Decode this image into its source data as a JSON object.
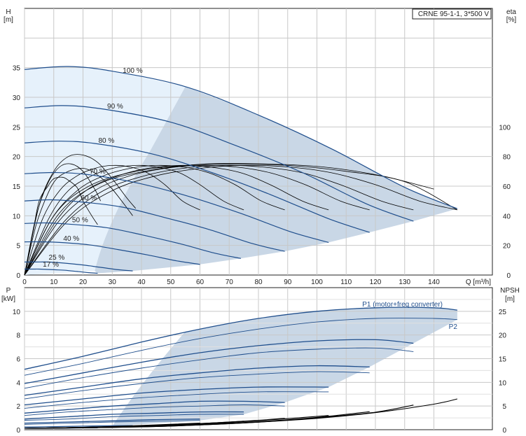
{
  "model_label": "CRNE 95-1-1, 3*500 V",
  "colors": {
    "grid": "#c8c8c8",
    "envelope_light": "#e6f1fb",
    "envelope_dark": "#c9d7e6",
    "pump_curve": "#1f4e8c",
    "eta_curve": "#000000",
    "axis": "#222222"
  },
  "chart_data": [
    {
      "type": "line",
      "panel": "top",
      "x_axis": {
        "label": "Q [m³/h]",
        "min": 0,
        "max": 160,
        "ticks": [
          0,
          10,
          20,
          30,
          40,
          50,
          60,
          70,
          80,
          90,
          100,
          110,
          120,
          130,
          140
        ]
      },
      "y_left": {
        "label_top": "H",
        "label_unit": "[m]",
        "min": 0,
        "max": 45,
        "ticks": [
          0,
          5,
          10,
          15,
          20,
          25,
          30,
          35
        ]
      },
      "y_right": {
        "label_top": "eta",
        "label_unit": "[%]",
        "min": 0,
        "max": 180,
        "ticks": [
          0,
          20,
          40,
          60,
          80,
          100
        ]
      },
      "grid": true,
      "speed_curves": [
        {
          "label": "100 %",
          "x": [
            0,
            15,
            30,
            55,
            80,
            105,
            130,
            148
          ],
          "y": [
            34.7,
            35.2,
            34.4,
            31.8,
            27.0,
            21.3,
            14.8,
            11.2
          ]
        },
        {
          "label": "90 %",
          "x": [
            0,
            13,
            27,
            50,
            72,
            95,
            117,
            133
          ],
          "y": [
            28.2,
            28.6,
            28.0,
            25.8,
            21.9,
            17.3,
            12.0,
            9.1
          ]
        },
        {
          "label": "80 %",
          "x": [
            0,
            12,
            24,
            44,
            64,
            84,
            104,
            118
          ],
          "y": [
            22.3,
            22.6,
            22.2,
            20.4,
            17.3,
            13.6,
            9.5,
            7.2
          ]
        },
        {
          "label": "70 %",
          "x": [
            0,
            10,
            21,
            38,
            56,
            74,
            91,
            104
          ],
          "y": [
            17.1,
            17.3,
            17.0,
            15.6,
            13.3,
            10.4,
            7.3,
            5.5
          ]
        },
        {
          "label": "60 %",
          "x": [
            0,
            9,
            18,
            33,
            48,
            63,
            78,
            89
          ],
          "y": [
            12.5,
            12.7,
            12.4,
            11.5,
            9.7,
            7.7,
            5.3,
            4.0
          ]
        },
        {
          "label": "50 %",
          "x": [
            0,
            7,
            15,
            28,
            40,
            53,
            65,
            74
          ],
          "y": [
            8.7,
            8.8,
            8.6,
            8.0,
            6.8,
            5.3,
            3.7,
            2.8
          ]
        },
        {
          "label": "40 %",
          "x": [
            0,
            6,
            12,
            22,
            32,
            42,
            52,
            60
          ],
          "y": [
            5.6,
            5.6,
            5.5,
            5.1,
            4.3,
            3.4,
            2.4,
            1.8
          ]
        },
        {
          "label": "25 %",
          "x": [
            0,
            4,
            8,
            14,
            20,
            26,
            32,
            37
          ],
          "y": [
            2.2,
            2.2,
            2.2,
            2.0,
            1.7,
            1.3,
            0.9,
            0.7
          ]
        },
        {
          "label": "17 %",
          "x": [
            0,
            3,
            5,
            10,
            14,
            18,
            22,
            25
          ],
          "y": [
            1.0,
            1.0,
            1.0,
            0.9,
            0.8,
            0.6,
            0.4,
            0.3
          ]
        }
      ],
      "eta_curves": [
        {
          "x": [
            0,
            15,
            30,
            45,
            60,
            75,
            90,
            105,
            120,
            135,
            148
          ],
          "y": [
            0,
            37,
            57,
            67,
            72,
            74,
            73,
            69,
            61,
            50,
            44
          ]
        },
        {
          "x": [
            0,
            14,
            27,
            41,
            54,
            68,
            81,
            95,
            108,
            122,
            133
          ],
          "y": [
            0,
            37,
            57,
            67,
            72,
            74,
            73,
            69,
            61,
            50,
            44
          ]
        },
        {
          "x": [
            0,
            12,
            24,
            36,
            48,
            60,
            72,
            84,
            96,
            108,
            118
          ],
          "y": [
            0,
            37,
            57,
            67,
            72,
            74,
            73,
            69,
            61,
            50,
            44
          ]
        },
        {
          "x": [
            0,
            11,
            21,
            32,
            42,
            53,
            63,
            74,
            84,
            95,
            104
          ],
          "y": [
            0,
            37,
            57,
            67,
            72,
            74,
            73,
            69,
            61,
            50,
            44
          ]
        },
        {
          "x": [
            0,
            9,
            18,
            27,
            36,
            45,
            54,
            63,
            72,
            81,
            89
          ],
          "y": [
            0,
            37,
            57,
            67,
            72,
            74,
            73,
            69,
            61,
            50,
            44
          ]
        },
        {
          "x": [
            0,
            8,
            15,
            23,
            30,
            38,
            45,
            53,
            60,
            68,
            75
          ],
          "y": [
            0,
            37,
            57,
            67,
            72,
            74,
            73,
            69,
            61,
            50,
            44
          ]
        },
        {
          "x": [
            0,
            6,
            12,
            18,
            24,
            30,
            36,
            42,
            48,
            54,
            60
          ],
          "y": [
            0,
            37,
            57,
            67,
            72,
            74,
            73,
            69,
            61,
            50,
            44
          ]
        },
        {
          "x": [
            0,
            4,
            8,
            11,
            15,
            19,
            22,
            26,
            30,
            34,
            37
          ],
          "y": [
            0,
            34,
            55,
            65,
            70,
            72,
            71,
            66,
            58,
            48,
            40
          ]
        },
        {
          "x": [
            0,
            3,
            5,
            8,
            10,
            13,
            15,
            18,
            20,
            23,
            25
          ],
          "y": [
            0,
            30,
            50,
            60,
            65,
            66,
            64,
            59,
            50,
            40,
            34
          ]
        },
        {
          "x": [
            0,
            5,
            10,
            15,
            20,
            25,
            30,
            35,
            38
          ],
          "y": [
            0,
            47,
            70,
            80,
            81,
            76,
            65,
            52,
            45
          ]
        },
        {
          "x": [
            0,
            4,
            8,
            12,
            16,
            20,
            24,
            26
          ],
          "y": [
            0,
            40,
            62,
            73,
            75,
            70,
            58,
            50
          ]
        },
        {
          "x": [
            0,
            10,
            22,
            38,
            55,
            72,
            90,
            110,
            130,
            148
          ],
          "y": [
            0,
            40,
            60,
            70,
            74,
            75,
            74,
            70,
            63,
            44
          ]
        },
        {
          "x": [
            0,
            12,
            26,
            44,
            62,
            82,
            102,
            122,
            140
          ],
          "y": [
            0,
            42,
            62,
            71,
            75,
            75,
            73,
            67,
            58
          ]
        }
      ]
    },
    {
      "type": "line",
      "panel": "bottom",
      "x_axis": {
        "label": "",
        "min": 0,
        "max": 160,
        "ticks": []
      },
      "y_left": {
        "label_top": "P",
        "label_unit": "[kW]",
        "min": 0,
        "max": 12,
        "ticks": [
          0,
          2,
          4,
          6,
          8,
          10
        ]
      },
      "y_right": {
        "label_top": "NPSH",
        "label_unit": "[m]",
        "min": 0,
        "max": 30,
        "ticks": [
          0,
          5,
          10,
          15,
          20,
          25
        ]
      },
      "grid": true,
      "power_labels": [
        {
          "text": "P1 (motor+freq converter)",
          "x": 143,
          "y": 10.4
        },
        {
          "text": "P2",
          "x": 148,
          "y": 8.5
        }
      ],
      "power_curves": [
        {
          "x": [
            0,
            20,
            40,
            60,
            80,
            100,
            120,
            140,
            148
          ],
          "y": [
            5.1,
            6.2,
            7.4,
            8.5,
            9.4,
            10.0,
            10.3,
            10.3,
            10.1
          ]
        },
        {
          "x": [
            0,
            20,
            40,
            60,
            80,
            100,
            120,
            140,
            148
          ],
          "y": [
            4.6,
            5.6,
            6.7,
            7.7,
            8.5,
            9.1,
            9.4,
            9.4,
            9.3
          ]
        },
        {
          "x": [
            0,
            20,
            40,
            60,
            80,
            100,
            120,
            133
          ],
          "y": [
            3.9,
            4.8,
            5.7,
            6.5,
            7.1,
            7.5,
            7.6,
            7.3
          ]
        },
        {
          "x": [
            0,
            20,
            40,
            60,
            80,
            100,
            120,
            133
          ],
          "y": [
            3.5,
            4.4,
            5.2,
            5.9,
            6.5,
            6.8,
            6.9,
            6.6
          ]
        },
        {
          "x": [
            0,
            20,
            40,
            60,
            80,
            100,
            118
          ],
          "y": [
            2.9,
            3.6,
            4.3,
            4.8,
            5.2,
            5.4,
            5.3
          ]
        },
        {
          "x": [
            0,
            20,
            40,
            60,
            80,
            100,
            118
          ],
          "y": [
            2.6,
            3.3,
            3.9,
            4.4,
            4.7,
            4.9,
            4.8
          ]
        },
        {
          "x": [
            0,
            20,
            40,
            60,
            80,
            104
          ],
          "y": [
            2.1,
            2.6,
            3.1,
            3.4,
            3.6,
            3.6
          ]
        },
        {
          "x": [
            0,
            20,
            40,
            60,
            80,
            104
          ],
          "y": [
            1.8,
            2.3,
            2.7,
            3.0,
            3.2,
            3.2
          ]
        },
        {
          "x": [
            0,
            15,
            30,
            45,
            60,
            75,
            89
          ],
          "y": [
            1.4,
            1.7,
            2.0,
            2.2,
            2.4,
            2.4,
            2.3
          ]
        },
        {
          "x": [
            0,
            15,
            30,
            45,
            60,
            75,
            89
          ],
          "y": [
            1.2,
            1.5,
            1.7,
            1.9,
            2.0,
            2.1,
            2.0
          ]
        },
        {
          "x": [
            0,
            15,
            30,
            45,
            60,
            75
          ],
          "y": [
            0.9,
            1.1,
            1.3,
            1.4,
            1.5,
            1.5
          ]
        },
        {
          "x": [
            0,
            15,
            30,
            45,
            60,
            75
          ],
          "y": [
            0.8,
            0.9,
            1.1,
            1.2,
            1.3,
            1.3
          ]
        },
        {
          "x": [
            0,
            15,
            30,
            45,
            60
          ],
          "y": [
            0.55,
            0.65,
            0.75,
            0.85,
            0.9
          ]
        },
        {
          "x": [
            0,
            15,
            30,
            45,
            60
          ],
          "y": [
            0.45,
            0.55,
            0.65,
            0.72,
            0.78
          ]
        },
        {
          "x": [
            0,
            10,
            20,
            30,
            37
          ],
          "y": [
            0.22,
            0.26,
            0.3,
            0.33,
            0.34
          ]
        },
        {
          "x": [
            0,
            10,
            20,
            25
          ],
          "y": [
            0.1,
            0.12,
            0.14,
            0.15
          ]
        }
      ],
      "npsh_curves": [
        {
          "x": [
            0,
            20,
            40,
            60,
            80,
            100,
            120,
            140,
            148
          ],
          "y": [
            0.3,
            0.4,
            0.6,
            1.0,
            1.6,
            2.4,
            3.6,
            5.4,
            6.5
          ]
        },
        {
          "x": [
            0,
            20,
            40,
            60,
            80,
            100,
            120,
            133
          ],
          "y": [
            0.3,
            0.4,
            0.6,
            1.0,
            1.6,
            2.5,
            3.7,
            5.2
          ]
        },
        {
          "x": [
            0,
            20,
            40,
            60,
            80,
            100,
            118
          ],
          "y": [
            0.3,
            0.4,
            0.7,
            1.1,
            1.7,
            2.6,
            3.8
          ]
        },
        {
          "x": [
            0,
            20,
            40,
            60,
            80,
            104
          ],
          "y": [
            0.3,
            0.5,
            0.7,
            1.2,
            1.9,
            3.0
          ]
        },
        {
          "x": [
            0,
            20,
            40,
            60,
            80,
            89
          ],
          "y": [
            0.3,
            0.5,
            0.8,
            1.3,
            2.0,
            2.4
          ]
        },
        {
          "x": [
            0,
            20,
            40,
            60,
            75
          ],
          "y": [
            0.3,
            0.5,
            0.8,
            1.3,
            1.8
          ]
        },
        {
          "x": [
            0,
            20,
            40,
            60
          ],
          "y": [
            0.3,
            0.5,
            0.9,
            1.4
          ]
        }
      ]
    }
  ]
}
